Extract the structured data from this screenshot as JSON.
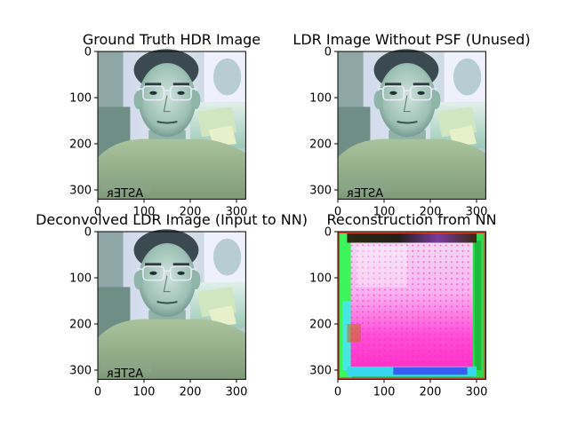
{
  "chart_data": [
    {
      "type": "image",
      "title": "Ground Truth HDR Image",
      "xlim": [
        0,
        320
      ],
      "ylim": [
        320,
        0
      ],
      "xticks": [
        0,
        100,
        200,
        300
      ],
      "yticks": [
        0,
        100,
        200,
        300
      ],
      "image": {
        "kind": "portrait",
        "content": "photo of a man with glasses in a light shirt",
        "overlay_text": "ᴙƎTƧA"
      }
    },
    {
      "type": "image",
      "title": "LDR Image Without PSF (Unused)",
      "xlim": [
        0,
        320
      ],
      "ylim": [
        320,
        0
      ],
      "xticks": [
        0,
        100,
        200,
        300
      ],
      "yticks": [
        0,
        100,
        200,
        300
      ],
      "image": {
        "kind": "portrait",
        "content": "photo of a man with glasses in a light shirt",
        "overlay_text": "ᴙƎTƧA"
      }
    },
    {
      "type": "image",
      "title": "Deconvolved LDR Image (Input to NN)",
      "xlim": [
        0,
        320
      ],
      "ylim": [
        320,
        0
      ],
      "xticks": [
        0,
        100,
        200,
        300
      ],
      "yticks": [
        0,
        100,
        200,
        300
      ],
      "image": {
        "kind": "portrait",
        "content": "photo of a man with glasses in a light shirt",
        "overlay_text": "ᴙƎTƧA"
      }
    },
    {
      "type": "image",
      "title": "Reconstruction from NN",
      "xlim": [
        0,
        320
      ],
      "ylim": [
        320,
        0
      ],
      "xticks": [
        0,
        100,
        200,
        300
      ],
      "yticks": [
        0,
        100,
        200,
        300
      ],
      "image": {
        "kind": "reconstruction",
        "content": "magenta square with green/cyan borders and dotted artifact pattern"
      }
    }
  ]
}
